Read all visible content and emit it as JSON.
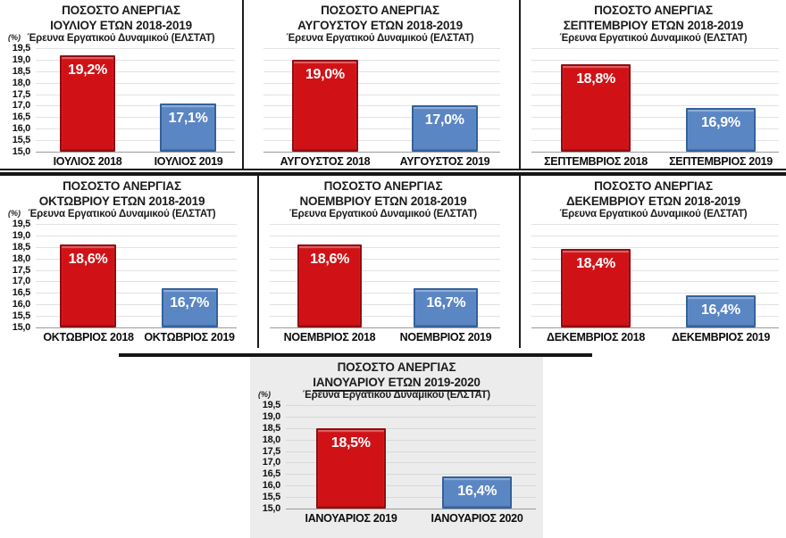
{
  "page": {
    "background": "#ffffff"
  },
  "y_axis": {
    "unit_label": "(%)",
    "min": 15.0,
    "max": 19.5,
    "step": 0.5,
    "ticks": [
      "19,5",
      "19,0",
      "18,5",
      "18,0",
      "17,5",
      "17,0",
      "16,5",
      "16,0",
      "15,5",
      "15,0"
    ]
  },
  "colors": {
    "bar_2018": "#d01217",
    "bar_2018_border": "#8f0e11",
    "bar_2019": "#5b86c4",
    "bar_2019_border": "#33619b",
    "grid": "#e2e2e2",
    "grid_dark": "#d8d8d8",
    "baseline": "#9c9c9c",
    "title_text": "#1c1c1c",
    "value_label_text": "#ffffff",
    "separator": "#161616",
    "panel7_background": "#ececec"
  },
  "chart_data": [
    {
      "type": "bar",
      "title_line1": "ΠΟΣΟΣΤΟ ΑΝΕΡΓΙΑΣ",
      "title_line2": "ΙΟΥΛΙΟΥ ΕΤΩΝ 2018-2019",
      "title_line2_underline": false,
      "subtitle": "Έρευνα Εργατικού Δυναμικού (ΕΛΣΤΑΤ)",
      "ylabel": "(%)",
      "xlabel": "",
      "ylim": [
        15.0,
        19.5
      ],
      "show_y_axis": true,
      "grid": true,
      "legend": "none",
      "categories": [
        "ΙΟΥΛΙΟΣ 2018",
        "ΙΟΥΛΙΟΣ 2019"
      ],
      "values": [
        19.2,
        17.1
      ],
      "value_labels": [
        "19,2%",
        "17,1%"
      ]
    },
    {
      "type": "bar",
      "title_line1": "ΠΟΣΟΣΤΟ ΑΝΕΡΓΙΑΣ",
      "title_line2": "ΑΥΓΟΥΣΤΟΥ ΕΤΩΝ 2018-2019",
      "title_line2_underline": false,
      "subtitle": "Έρευνα Εργατικού Δυναμικού (ΕΛΣΤΑΤ)",
      "ylabel": "(%)",
      "xlabel": "",
      "ylim": [
        15.0,
        19.5
      ],
      "show_y_axis": false,
      "grid": true,
      "legend": "none",
      "categories": [
        "ΑΥΓΟΥΣΤΟΣ 2018",
        "ΑΥΓΟΥΣΤΟΣ 2019"
      ],
      "values": [
        19.0,
        17.0
      ],
      "value_labels": [
        "19,0%",
        "17,0%"
      ]
    },
    {
      "type": "bar",
      "title_line1": "ΠΟΣΟΣΤΟ ΑΝΕΡΓΙΑΣ",
      "title_line2": "ΣΕΠΤΕΜΒΡΙΟΥ ΕΤΩΝ 2018-2019",
      "title_line2_underline": false,
      "subtitle": "Έρευνα Εργατικού Δυναμικού (ΕΛΣΤΑΤ)",
      "ylabel": "(%)",
      "xlabel": "",
      "ylim": [
        15.0,
        19.5
      ],
      "show_y_axis": false,
      "grid": true,
      "legend": "none",
      "categories": [
        "ΣΕΠΤΕΜΒΡΙΟΣ 2018",
        "ΣΕΠΤΕΜΒΡΙΟΣ 2019"
      ],
      "values": [
        18.8,
        16.9
      ],
      "value_labels": [
        "18,8%",
        "16,9%"
      ]
    },
    {
      "type": "bar",
      "title_line1": "ΠΟΣΟΣΤΟ ΑΝΕΡΓΙΑΣ",
      "title_line2": "ΟΚΤΩΒΡΙΟΥ ΕΤΩΝ 2018-2019",
      "title_line2_underline": false,
      "subtitle": "Έρευνα Εργατικού Δυναμικού (ΕΛΣΤΑΤ)",
      "ylabel": "(%)",
      "xlabel": "",
      "ylim": [
        15.0,
        19.5
      ],
      "show_y_axis": true,
      "grid": true,
      "legend": "none",
      "categories": [
        "ΟΚΤΩΒΡΙΟΣ 2018",
        "ΟΚΤΩΒΡΙΟΣ 2019"
      ],
      "values": [
        18.6,
        16.7
      ],
      "value_labels": [
        "18,6%",
        "16,7%"
      ]
    },
    {
      "type": "bar",
      "title_line1": "ΠΟΣΟΣΤΟ ΑΝΕΡΓΙΑΣ",
      "title_line2": "ΝΟΕΜΒΡΙΟΥ ΕΤΩΝ 2018-2019",
      "title_line2_underline": false,
      "subtitle": "Έρευνα Εργατικού Δυναμικού (ΕΛΣΤΑΤ)",
      "ylabel": "(%)",
      "xlabel": "",
      "ylim": [
        15.0,
        19.5
      ],
      "show_y_axis": false,
      "grid": true,
      "legend": "none",
      "categories": [
        "ΝΟΕΜΒΡΙΟΣ 2018",
        "ΝΟΕΜΒΡΙΟΣ 2019"
      ],
      "values": [
        18.6,
        16.7
      ],
      "value_labels": [
        "18,6%",
        "16,7%"
      ]
    },
    {
      "type": "bar",
      "title_line1": "ΠΟΣΟΣΤΟ ΑΝΕΡΓΙΑΣ",
      "title_line2": "ΔΕΚΕΜΒΡΙΟΥ ΕΤΩΝ 2018-2019",
      "title_line2_underline": false,
      "subtitle": "Έρευνα Εργατικού Δυναμικού (ΕΛΣΤΑΤ)",
      "ylabel": "(%)",
      "xlabel": "",
      "ylim": [
        15.0,
        19.5
      ],
      "show_y_axis": false,
      "grid": true,
      "legend": "none",
      "categories": [
        "ΔΕΚΕΜΒΡΙΟΣ 2018",
        "ΔΕΚΕΜΒΡΙΟΣ 2019"
      ],
      "values": [
        18.4,
        16.4
      ],
      "value_labels": [
        "18,4%",
        "16,4%"
      ]
    },
    {
      "type": "bar",
      "title_line1": "ΠΟΣΟΣΤΟ ΑΝΕΡΓΙΑΣ",
      "title_line2": "ΙΑΝΟΥΑΡΙΟΥ ΕΤΩΝ 2019-2020",
      "title_line2_underline": true,
      "subtitle": "Έρευνα Εργατικού Δυναμικού (ΕΛΣΤΑΤ)",
      "ylabel": "(%)",
      "xlabel": "",
      "ylim": [
        15.0,
        19.5
      ],
      "show_y_axis": true,
      "grid": true,
      "legend": "none",
      "panel_background": "#ececec",
      "categories": [
        "ΙΑΝΟΥΑΡΙΟΣ 2019",
        "ΙΑΝΟΥΑΡΙΟΣ 2020"
      ],
      "values": [
        18.5,
        16.4
      ],
      "value_labels": [
        "18,5%",
        "16,4%"
      ]
    }
  ]
}
